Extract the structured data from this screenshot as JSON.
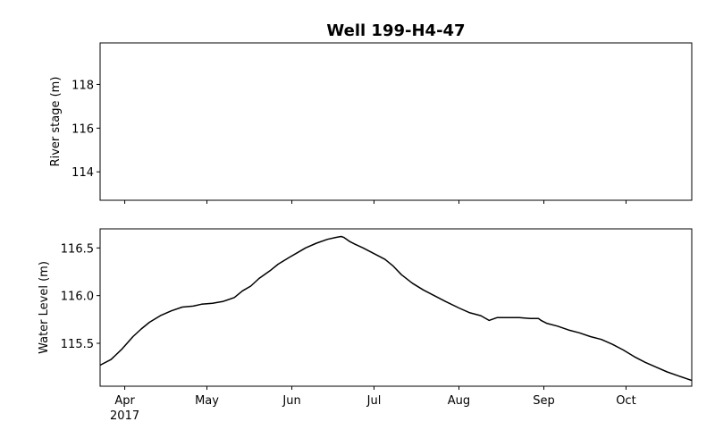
{
  "chart_data": [
    {
      "type": "line",
      "title": "Well 199-H4-47",
      "xlabel": "",
      "ylabel": "River stage (m)",
      "ylim": [
        112.7,
        119.9
      ],
      "yticks": [
        114,
        116,
        118
      ],
      "grid": false,
      "legend": "none",
      "series": []
    },
    {
      "type": "line",
      "title": "",
      "xlabel": "",
      "ylabel": "Water Level (m)",
      "xlim": [
        "2017-03-23",
        "2017-10-25"
      ],
      "ylim": [
        115.05,
        116.7
      ],
      "yticks": [
        115.5,
        116.0,
        116.5
      ],
      "xticks": [
        {
          "date": "2017-04-01",
          "label": "Apr",
          "sublabel": "2017"
        },
        {
          "date": "2017-05-01",
          "label": "May"
        },
        {
          "date": "2017-06-01",
          "label": "Jun"
        },
        {
          "date": "2017-07-01",
          "label": "Jul"
        },
        {
          "date": "2017-08-01",
          "label": "Aug"
        },
        {
          "date": "2017-09-01",
          "label": "Sep"
        },
        {
          "date": "2017-10-01",
          "label": "Oct"
        }
      ],
      "grid": false,
      "legend": "none",
      "line_color": "#000000",
      "series": [
        {
          "x": [
            "2017-03-23",
            "2017-03-27",
            "2017-03-31",
            "2017-04-04",
            "2017-04-07",
            "2017-04-10",
            "2017-04-14",
            "2017-04-18",
            "2017-04-22",
            "2017-04-26",
            "2017-04-29",
            "2017-05-03",
            "2017-05-07",
            "2017-05-11",
            "2017-05-14",
            "2017-05-17",
            "2017-05-20",
            "2017-05-24",
            "2017-05-27",
            "2017-05-31",
            "2017-06-03",
            "2017-06-06",
            "2017-06-10",
            "2017-06-14",
            "2017-06-17",
            "2017-06-19",
            "2017-06-20",
            "2017-06-22",
            "2017-06-24",
            "2017-06-27",
            "2017-07-01",
            "2017-07-05",
            "2017-07-08",
            "2017-07-11",
            "2017-07-15",
            "2017-07-19",
            "2017-07-23",
            "2017-07-27",
            "2017-08-01",
            "2017-08-05",
            "2017-08-09",
            "2017-08-12",
            "2017-08-15",
            "2017-08-19",
            "2017-08-23",
            "2017-08-27",
            "2017-08-30",
            "2017-08-31",
            "2017-09-02",
            "2017-09-06",
            "2017-09-10",
            "2017-09-14",
            "2017-09-18",
            "2017-09-22",
            "2017-09-26",
            "2017-09-30",
            "2017-10-04",
            "2017-10-08",
            "2017-10-12",
            "2017-10-16",
            "2017-10-20",
            "2017-10-25"
          ],
          "y": [
            115.27,
            115.33,
            115.44,
            115.57,
            115.65,
            115.72,
            115.79,
            115.84,
            115.88,
            115.89,
            115.91,
            115.92,
            115.94,
            115.98,
            116.05,
            116.1,
            116.18,
            116.26,
            116.33,
            116.4,
            116.45,
            116.5,
            116.55,
            116.59,
            116.61,
            116.62,
            116.61,
            116.57,
            116.54,
            116.5,
            116.44,
            116.38,
            116.31,
            116.22,
            116.13,
            116.06,
            116.0,
            115.94,
            115.87,
            115.82,
            115.79,
            115.74,
            115.77,
            115.77,
            115.77,
            115.76,
            115.76,
            115.74,
            115.71,
            115.68,
            115.64,
            115.61,
            115.57,
            115.54,
            115.49,
            115.43,
            115.36,
            115.3,
            115.25,
            115.2,
            115.16,
            115.11
          ]
        }
      ]
    }
  ]
}
